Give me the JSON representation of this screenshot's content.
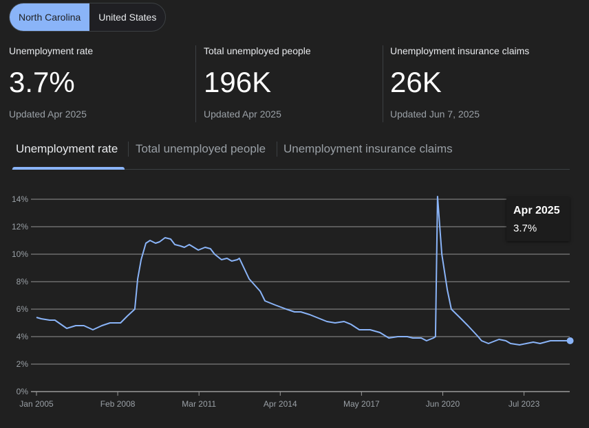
{
  "region_toggle": {
    "options": [
      "North Carolina",
      "United States"
    ],
    "selected": "North Carolina"
  },
  "stats": [
    {
      "label": "Unemployment rate",
      "value": "3.7%",
      "updated": "Updated Apr 2025"
    },
    {
      "label": "Total unemployed people",
      "value": "196K",
      "updated": "Updated Apr 2025"
    },
    {
      "label": "Unemployment insurance claims",
      "value": "26K",
      "updated": "Updated Jun 7, 2025"
    }
  ],
  "tabs": [
    {
      "label": "Unemployment rate",
      "active": true
    },
    {
      "label": "Total unemployed people",
      "active": false
    },
    {
      "label": "Unemployment insurance claims",
      "active": false
    }
  ],
  "tooltip": {
    "date": "Apr 2025",
    "value": "3.7%"
  },
  "colors": {
    "accent": "#8ab4f8",
    "background": "#202020",
    "grid": "#6e6e6e"
  },
  "chart_data": {
    "type": "line",
    "title": "Unemployment rate",
    "xlabel": "",
    "ylabel": "",
    "ylim": [
      0,
      14
    ],
    "xlim": [
      2005.0,
      2025.25
    ],
    "yticks": [
      "0%",
      "2%",
      "4%",
      "6%",
      "8%",
      "10%",
      "12%",
      "14%"
    ],
    "ytick_values": [
      0,
      2,
      4,
      6,
      8,
      10,
      12,
      14
    ],
    "xticks": [
      "Jan 2005",
      "Feb 2008",
      "Mar 2011",
      "Apr 2014",
      "May 2017",
      "Jun 2020",
      "Jul 2023"
    ],
    "xtick_values": [
      2005.0,
      2008.083,
      2011.167,
      2014.25,
      2017.333,
      2020.417,
      2023.5
    ],
    "grid": true,
    "series": [
      {
        "name": "North Carolina",
        "x": [
          2005.0,
          2005.18,
          2005.5,
          2005.7,
          2006.15,
          2006.49,
          2006.8,
          2007.14,
          2007.48,
          2007.79,
          2008.19,
          2008.45,
          2008.73,
          2008.84,
          2008.97,
          2009.15,
          2009.31,
          2009.52,
          2009.67,
          2009.88,
          2010.09,
          2010.25,
          2010.46,
          2010.61,
          2010.8,
          2011.14,
          2011.4,
          2011.6,
          2011.76,
          2012.02,
          2012.23,
          2012.41,
          2012.62,
          2012.7,
          2013.07,
          2013.49,
          2013.67,
          2014.06,
          2014.48,
          2014.79,
          2015.03,
          2015.37,
          2015.76,
          2016.02,
          2016.33,
          2016.67,
          2016.93,
          2017.25,
          2017.66,
          2018.03,
          2018.37,
          2018.71,
          2019.07,
          2019.28,
          2019.6,
          2019.8,
          2020.06,
          2020.14,
          2020.22,
          2020.38,
          2020.59,
          2020.74,
          2021.06,
          2021.37,
          2021.76,
          2021.89,
          2022.15,
          2022.55,
          2022.81,
          2022.99,
          2023.33,
          2023.59,
          2023.85,
          2024.11,
          2024.5,
          2025.25
        ],
        "y": [
          5.4,
          5.3,
          5.2,
          5.2,
          4.6,
          4.8,
          4.8,
          4.5,
          4.8,
          5.0,
          5.0,
          5.5,
          6.0,
          8.2,
          9.6,
          10.8,
          11.0,
          10.8,
          10.9,
          11.2,
          11.1,
          10.7,
          10.6,
          10.5,
          10.7,
          10.3,
          10.5,
          10.4,
          10.0,
          9.6,
          9.7,
          9.5,
          9.6,
          9.7,
          8.2,
          7.3,
          6.6,
          6.3,
          6.0,
          5.8,
          5.8,
          5.6,
          5.3,
          5.1,
          5.0,
          5.1,
          4.9,
          4.5,
          4.5,
          4.3,
          3.9,
          4.0,
          4.0,
          3.9,
          3.9,
          3.7,
          3.9,
          4.0,
          14.2,
          10.0,
          7.4,
          6.0,
          5.4,
          4.8,
          4.0,
          3.7,
          3.5,
          3.8,
          3.7,
          3.5,
          3.4,
          3.5,
          3.6,
          3.5,
          3.7,
          3.7
        ]
      }
    ]
  }
}
